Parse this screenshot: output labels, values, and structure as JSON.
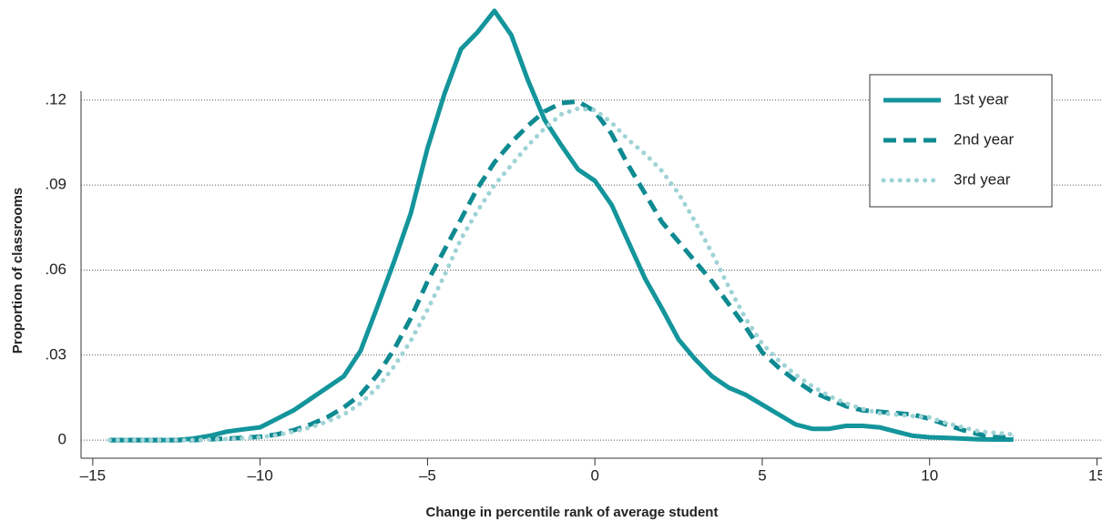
{
  "chart_data": {
    "type": "line",
    "x_label": "Change in percentile rank of average student",
    "y_label": "Proportion of classrooms",
    "x": [
      -14.5,
      -14,
      -13.5,
      -13,
      -12.5,
      -12,
      -11.5,
      -11,
      -10.5,
      -10,
      -9.5,
      -9,
      -8.5,
      -8,
      -7.5,
      -7,
      -6.5,
      -6,
      -5.5,
      -5,
      -4.5,
      -4,
      -3.5,
      -3,
      -2.5,
      -2,
      -1.5,
      -1,
      -0.5,
      0,
      0.5,
      1,
      1.5,
      2,
      2.5,
      3,
      3.5,
      4,
      4.5,
      5,
      5.5,
      6,
      6.5,
      7,
      7.5,
      8,
      8.5,
      9,
      9.5,
      10,
      10.5,
      11,
      11.5,
      12,
      12.5
    ],
    "series": [
      {
        "name": "1st year",
        "color": "#13959b",
        "style": "solid",
        "values": [
          0,
          0,
          0,
          0,
          0,
          0.0005,
          0.0015,
          0.003,
          0.0038,
          0.0045,
          0.0075,
          0.0105,
          0.0145,
          0.0185,
          0.0225,
          0.0315,
          0.047,
          0.063,
          0.08,
          0.103,
          0.122,
          0.138,
          0.144,
          0.1515,
          0.143,
          0.127,
          0.113,
          0.104,
          0.0955,
          0.0915,
          0.083,
          0.07,
          0.057,
          0.0465,
          0.0355,
          0.0285,
          0.0225,
          0.0185,
          0.016,
          0.0125,
          0.009,
          0.0055,
          0.004,
          0.004,
          0.005,
          0.005,
          0.0045,
          0.003,
          0.0015,
          0.001,
          0.0008,
          0.0005,
          0.0003,
          0.0002,
          0.0002
        ]
      },
      {
        "name": "2nd year",
        "color": "#0e8a91",
        "style": "dashed",
        "values": [
          0,
          0,
          0,
          0,
          0,
          0,
          0.0003,
          0.0005,
          0.0008,
          0.0012,
          0.002,
          0.0035,
          0.0055,
          0.008,
          0.0115,
          0.016,
          0.023,
          0.032,
          0.043,
          0.056,
          0.067,
          0.078,
          0.089,
          0.098,
          0.105,
          0.111,
          0.116,
          0.119,
          0.1195,
          0.116,
          0.108,
          0.097,
          0.087,
          0.077,
          0.07,
          0.063,
          0.056,
          0.048,
          0.04,
          0.031,
          0.0255,
          0.021,
          0.017,
          0.0145,
          0.012,
          0.0105,
          0.01,
          0.0095,
          0.009,
          0.0075,
          0.0055,
          0.0035,
          0.002,
          0.001,
          0.001
        ]
      },
      {
        "name": "3rd year",
        "color": "#9fd3d6",
        "style": "dotted",
        "values": [
          0,
          0,
          0,
          0,
          0,
          0,
          0.0002,
          0.0004,
          0.0006,
          0.001,
          0.0018,
          0.003,
          0.0045,
          0.0065,
          0.009,
          0.013,
          0.0185,
          0.026,
          0.035,
          0.046,
          0.058,
          0.071,
          0.081,
          0.09,
          0.097,
          0.104,
          0.11,
          0.115,
          0.117,
          0.1165,
          0.112,
          0.106,
          0.101,
          0.095,
          0.087,
          0.077,
          0.066,
          0.054,
          0.043,
          0.034,
          0.028,
          0.023,
          0.019,
          0.0155,
          0.013,
          0.011,
          0.0095,
          0.009,
          0.0085,
          0.008,
          0.006,
          0.0045,
          0.003,
          0.0025,
          0.002
        ]
      }
    ],
    "xlim": [
      -15.35,
      15.15
    ],
    "ylim": [
      -0.0064,
      0.155
    ],
    "xticks": [
      {
        "value": -15,
        "label": "–15"
      },
      {
        "value": -10,
        "label": "–10"
      },
      {
        "value": -5,
        "label": "–5"
      },
      0,
      5,
      10,
      15
    ],
    "yticks": [
      0,
      {
        "value": 0.03,
        "label": ".03"
      },
      {
        "value": 0.06,
        "label": ".06"
      },
      {
        "value": 0.09,
        "label": ".09"
      },
      {
        "value": 0.12,
        "label": ".12"
      }
    ],
    "grid": true,
    "legend": "upper right"
  }
}
